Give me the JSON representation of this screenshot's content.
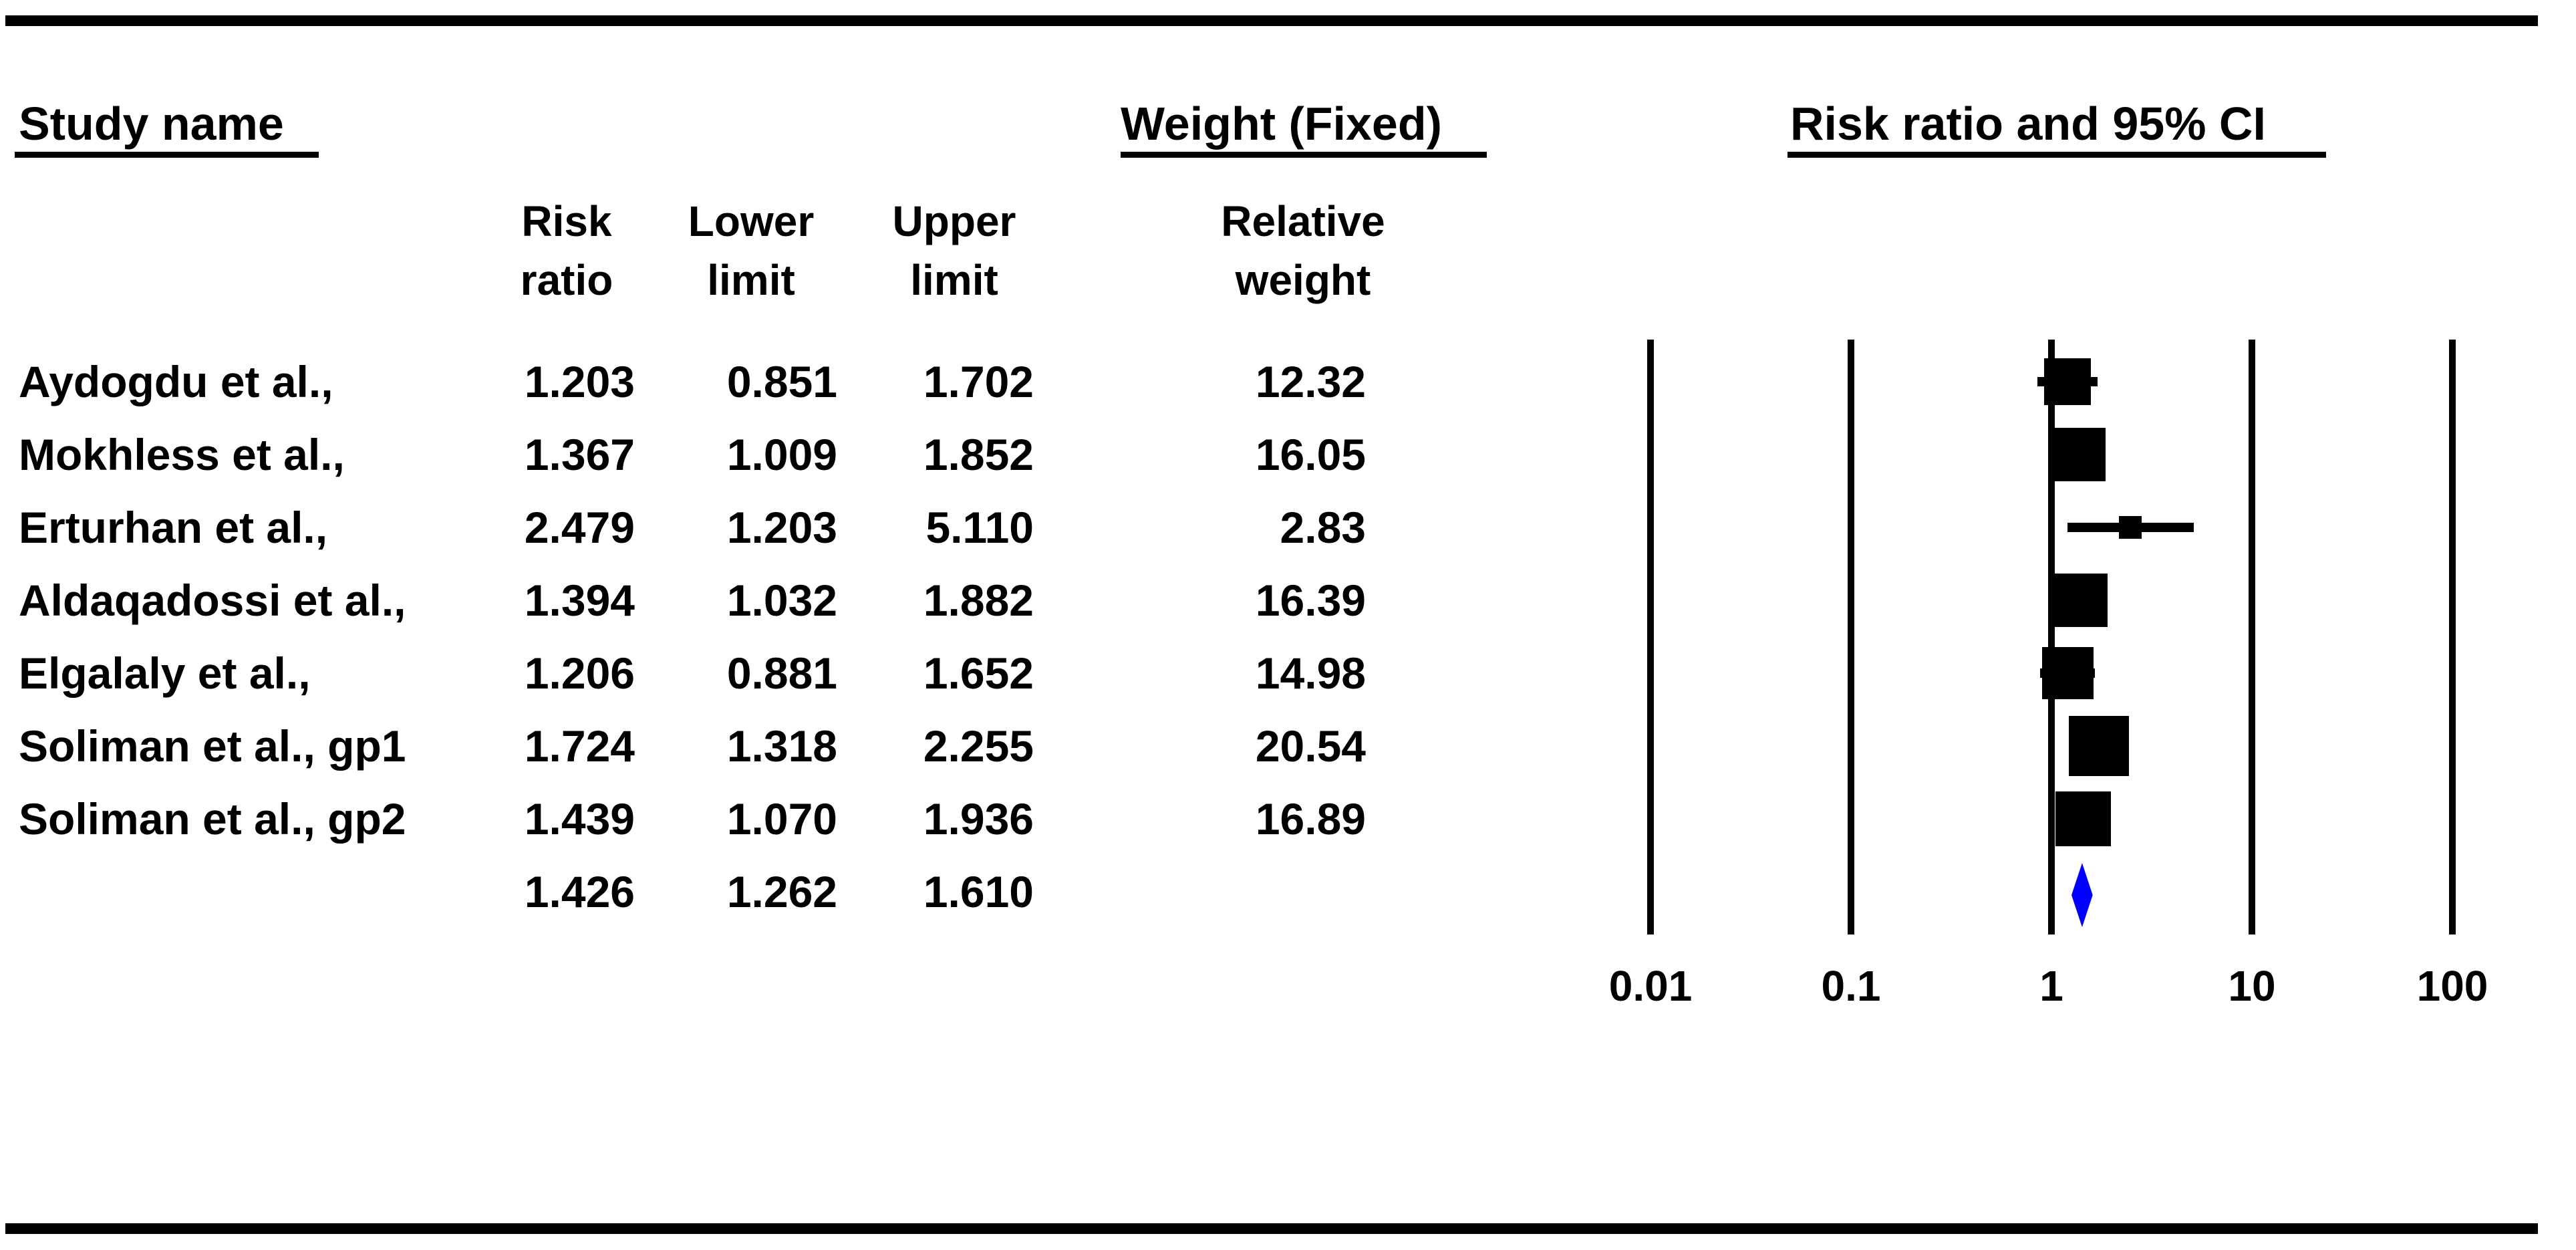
{
  "title_headers": {
    "study_name": "Study name",
    "weight_fixed": "Weight (Fixed)",
    "rr_ci": "Risk ratio and 95% CI"
  },
  "column_headers": {
    "risk_ratio": [
      "Risk",
      "ratio"
    ],
    "lower_limit": [
      "Lower",
      "limit"
    ],
    "upper_limit": [
      "Upper",
      "limit"
    ],
    "relative_weight": [
      "Relative",
      "weight"
    ]
  },
  "chart_data": {
    "type": "forest",
    "title": "Risk ratio and 95% CI",
    "effect_measure": "Risk ratio",
    "model": "Fixed",
    "x_axis": {
      "scale": "log",
      "ticks": [
        0.01,
        0.1,
        1,
        10,
        100
      ],
      "tick_labels": [
        "0.01",
        "0.1",
        "1",
        "10",
        "100"
      ]
    },
    "studies": [
      {
        "name": "Aydogdu et al.,",
        "risk_ratio": "1.203",
        "lower": "0.851",
        "upper": "1.702",
        "weight": "12.32"
      },
      {
        "name": "Mokhless et al.,",
        "risk_ratio": "1.367",
        "lower": "1.009",
        "upper": "1.852",
        "weight": "16.05"
      },
      {
        "name": "Erturhan et al.,",
        "risk_ratio": "2.479",
        "lower": "1.203",
        "upper": "5.110",
        "weight": "2.83"
      },
      {
        "name": "Aldaqadossi et al.,",
        "risk_ratio": "1.394",
        "lower": "1.032",
        "upper": "1.882",
        "weight": "16.39"
      },
      {
        "name": "Elgalaly et al.,",
        "risk_ratio": "1.206",
        "lower": "0.881",
        "upper": "1.652",
        "weight": "14.98"
      },
      {
        "name": "Soliman et al., gp1",
        "risk_ratio": "1.724",
        "lower": "1.318",
        "upper": "2.255",
        "weight": "20.54"
      },
      {
        "name": "Soliman et al., gp2",
        "risk_ratio": "1.439",
        "lower": "1.070",
        "upper": "1.936",
        "weight": "16.89"
      }
    ],
    "summary": {
      "risk_ratio": "1.426",
      "lower": "1.262",
      "upper": "1.610"
    },
    "colors": {
      "marker": "#000000",
      "ci_line": "#000000",
      "axis": "#000000",
      "summary_diamond": "#0000ff"
    }
  }
}
